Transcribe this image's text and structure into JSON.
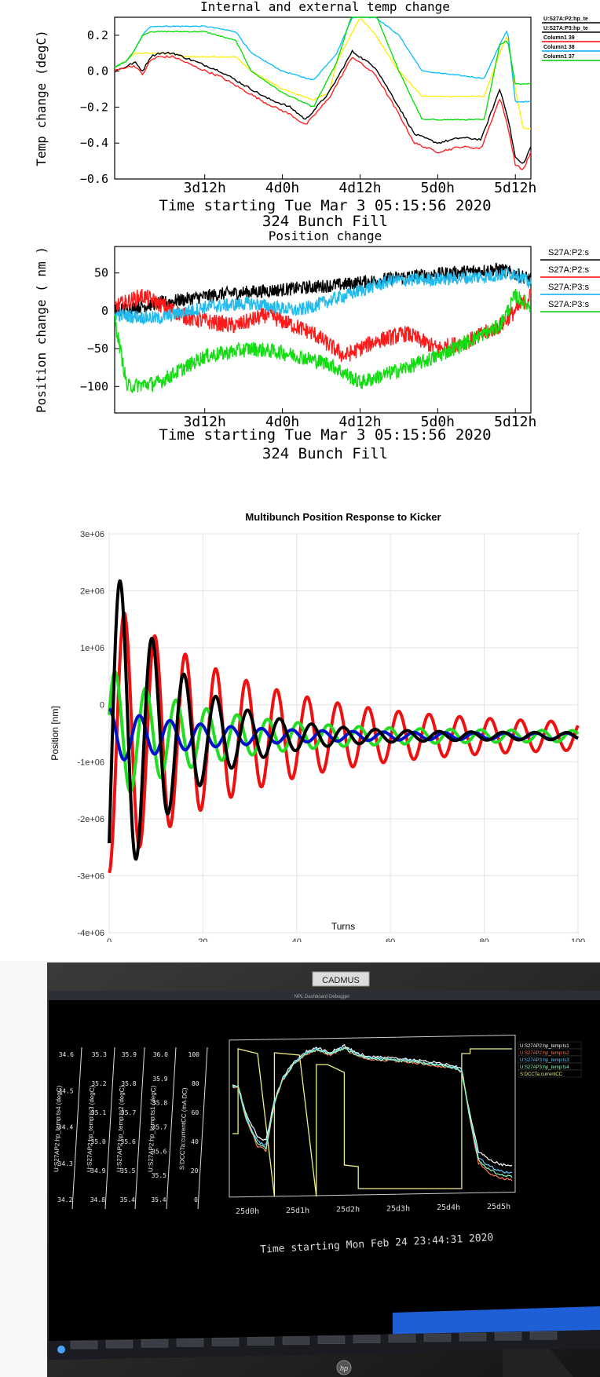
{
  "chart_data": [
    {
      "type": "line",
      "title": "Internal and external temp change",
      "ylabel": "Temp change (degC)",
      "xlabel": "Time starting Tue Mar  3 05:15:56  2020",
      "subtitle": "324 Bunch Fill",
      "x_ticks": [
        "3d12h",
        "4d0h",
        "4d12h",
        "5d0h",
        "5d12h"
      ],
      "y_ticks": [
        "0.2",
        "0.0",
        "−0.2",
        "−0.4",
        "−0.6"
      ],
      "ylim": [
        -0.6,
        0.3
      ],
      "xlim": [
        2.92,
        5.6
      ],
      "legend": [
        {
          "name": "U:S27A:P2:hp_te",
          "color": "#000000"
        },
        {
          "name": "U:S27A:P3:hp_te",
          "color": "#000000"
        },
        {
          "name": "Column1 39",
          "color": "#ff0000"
        },
        {
          "name": "Column1 38",
          "color": "#00aaff"
        },
        {
          "name": "Column1 37",
          "color": "#00cc00"
        }
      ],
      "series": [
        {
          "color": "#ffee00",
          "x": [
            2.92,
            3.0,
            3.05,
            3.1,
            3.3,
            3.35,
            3.7,
            3.8,
            4.0,
            4.2,
            4.3,
            4.35,
            4.5,
            4.6,
            4.75,
            4.9,
            5.0,
            5.3,
            5.4,
            5.45,
            5.5,
            5.55,
            5.6
          ],
          "y": [
            0.02,
            0.06,
            0.1,
            0.1,
            0.1,
            0.08,
            0.08,
            0.0,
            -0.1,
            -0.16,
            -0.12,
            0.05,
            0.3,
            0.2,
            0.0,
            -0.14,
            -0.14,
            -0.14,
            0.1,
            0.2,
            -0.1,
            -0.32,
            -0.32
          ]
        },
        {
          "color": "#00bbff",
          "x": [
            2.92,
            3.0,
            3.05,
            3.1,
            3.15,
            3.3,
            3.5,
            3.7,
            3.8,
            4.0,
            4.2,
            4.35,
            4.45,
            4.6,
            4.75,
            4.9,
            5.3,
            5.4,
            5.45,
            5.5,
            5.6
          ],
          "y": [
            0.02,
            0.06,
            0.12,
            0.2,
            0.25,
            0.25,
            0.25,
            0.22,
            0.1,
            0.0,
            -0.05,
            0.1,
            0.3,
            0.3,
            0.2,
            0.0,
            -0.04,
            0.15,
            0.23,
            -0.17,
            -0.17
          ]
        },
        {
          "color": "#00dd00",
          "x": [
            2.92,
            3.0,
            3.05,
            3.1,
            3.15,
            3.3,
            3.5,
            3.7,
            3.8,
            4.0,
            4.2,
            4.35,
            4.45,
            4.6,
            4.75,
            4.9,
            5.3,
            5.4,
            5.45,
            5.5,
            5.6
          ],
          "y": [
            0.02,
            0.06,
            0.12,
            0.2,
            0.22,
            0.22,
            0.22,
            0.17,
            0.0,
            -0.12,
            -0.2,
            0.05,
            0.32,
            0.32,
            0.0,
            -0.27,
            -0.27,
            0.15,
            0.17,
            -0.07,
            -0.07
          ]
        },
        {
          "color": "#000000",
          "x": [
            2.92,
            2.98,
            3.05,
            3.1,
            3.15,
            3.2,
            3.3,
            3.45,
            3.6,
            3.8,
            3.9,
            4.05,
            4.15,
            4.3,
            4.45,
            4.6,
            4.75,
            4.85,
            5.0,
            5.15,
            5.28,
            5.4,
            5.45,
            5.5,
            5.55,
            5.6
          ],
          "y": [
            0.0,
            0.02,
            0.05,
            0.0,
            0.08,
            0.1,
            0.1,
            0.05,
            0.0,
            -0.1,
            -0.15,
            -0.2,
            -0.27,
            -0.12,
            0.11,
            0.02,
            -0.2,
            -0.35,
            -0.4,
            -0.37,
            -0.38,
            -0.1,
            -0.25,
            -0.48,
            -0.52,
            -0.42
          ]
        },
        {
          "color": "#ff2222",
          "x": [
            2.92,
            2.98,
            3.05,
            3.1,
            3.15,
            3.2,
            3.3,
            3.45,
            3.6,
            3.8,
            3.9,
            4.05,
            4.15,
            4.3,
            4.45,
            4.6,
            4.75,
            4.85,
            5.0,
            5.15,
            5.28,
            5.4,
            5.45,
            5.5,
            5.55,
            5.6
          ],
          "y": [
            0.0,
            0.02,
            0.03,
            -0.02,
            0.06,
            0.08,
            0.08,
            0.02,
            -0.03,
            -0.13,
            -0.18,
            -0.24,
            -0.3,
            -0.15,
            0.08,
            -0.02,
            -0.24,
            -0.4,
            -0.45,
            -0.42,
            -0.43,
            -0.15,
            -0.3,
            -0.52,
            -0.55,
            -0.45
          ]
        }
      ]
    },
    {
      "type": "line",
      "title": "Position change",
      "ylabel": "Position change ( nm )",
      "xlabel": "Time starting Tue Mar  3 05:15:56  2020",
      "subtitle": "324 Bunch Fill",
      "x_ticks": [
        "3d12h",
        "4d0h",
        "4d12h",
        "5d0h",
        "5d12h"
      ],
      "y_ticks": [
        "50",
        "0",
        "−50",
        "−100"
      ],
      "ylim": [
        -135,
        85
      ],
      "xlim": [
        2.92,
        5.6
      ],
      "legend": [
        {
          "name": "S27A:P2:s",
          "color": "#000000"
        },
        {
          "name": "S27A:P2:s",
          "color": "#ff0000"
        },
        {
          "name": "S27A:P3:s",
          "color": "#00aaff"
        },
        {
          "name": "S27A:P3:s",
          "color": "#00cc00"
        }
      ],
      "series": [
        {
          "color": "#000000",
          "x": [
            2.92,
            3.2,
            3.6,
            4.0,
            4.4,
            4.8,
            5.2,
            5.4,
            5.6
          ],
          "y": [
            0,
            10,
            22,
            28,
            35,
            45,
            52,
            55,
            42
          ]
        },
        {
          "color": "#ff1a1a",
          "x": [
            2.92,
            3.1,
            3.4,
            3.7,
            3.9,
            4.2,
            4.4,
            4.6,
            4.8,
            5.0,
            5.2,
            5.4,
            5.6
          ],
          "y": [
            5,
            20,
            -10,
            -20,
            -5,
            -30,
            -60,
            -40,
            -30,
            -50,
            -40,
            -20,
            20
          ]
        },
        {
          "color": "#22bbee",
          "x": [
            2.92,
            3.2,
            3.5,
            3.8,
            4.1,
            4.4,
            4.7,
            5.0,
            5.3,
            5.5,
            5.6
          ],
          "y": [
            -5,
            -10,
            5,
            10,
            0,
            20,
            40,
            42,
            45,
            50,
            35
          ]
        },
        {
          "color": "#11dd11",
          "x": [
            2.92,
            3.0,
            3.2,
            3.5,
            3.8,
            4.0,
            4.3,
            4.5,
            4.8,
            5.0,
            5.2,
            5.4,
            5.5,
            5.6
          ],
          "y": [
            -10,
            -100,
            -95,
            -60,
            -50,
            -55,
            -70,
            -95,
            -75,
            -60,
            -40,
            -20,
            20,
            5
          ]
        }
      ]
    },
    {
      "type": "line",
      "title": "Multibunch Position Response to Kicker",
      "ylabel": "Position [nm]",
      "xlabel": "Turns",
      "x_ticks": [
        "0",
        "20",
        "40",
        "60",
        "80",
        "100"
      ],
      "y_ticks": [
        "3e+06",
        "2e+06",
        "1e+06",
        "0",
        "-1e+06",
        "-2e+06",
        "-3e+06",
        "-4e+06"
      ],
      "xlim": [
        0,
        100
      ],
      "ylim": [
        -4000000,
        3000000
      ],
      "grid": true,
      "series": [
        {
          "color": "#ee1111",
          "period": 6.5,
          "amp0": 2400000,
          "decay": 0.035,
          "ampfloor": 180000,
          "offset": -550000,
          "phase": 0.0
        },
        {
          "color": "#22dd22",
          "period": 6.5,
          "amp0": 1200000,
          "decay": 0.05,
          "ampfloor": 90000,
          "offset": -550000,
          "phase": 0.3
        },
        {
          "color": "#0011cc",
          "period": 6.5,
          "amp0": 480000,
          "decay": 0.05,
          "ampfloor": 50000,
          "offset": -550000,
          "phase": 0.5
        },
        {
          "color": "#000000",
          "period": 6.8,
          "amp0": 3200000,
          "decay": 0.07,
          "ampfloor": 60000,
          "offset": -550000,
          "phase": 0.15
        }
      ]
    }
  ],
  "monitor": {
    "label": "CADMUS",
    "window_title": "NPL Dashboard Debugger",
    "brand": "hp",
    "legend": [
      {
        "name": "U:S27AP2:hp_temp:ts1",
        "color": "#ffffff"
      },
      {
        "name": "U:S27AP2:hp_temp:ts2",
        "color": "#ff7755"
      },
      {
        "name": "U:S27AP3:hp_temp:ts3",
        "color": "#66ccff"
      },
      {
        "name": "U:S27AP3:hp_temp:ts4",
        "color": "#88ffbb"
      },
      {
        "name": "S:DCCTa:currentCC",
        "color": "#eeee88"
      }
    ],
    "axes": [
      {
        "label": "U:S27AP2:hp_temp:ts4 (degC)",
        "ticks": [
          "34.6",
          "34.5",
          "34.4",
          "34.3",
          "34.2"
        ]
      },
      {
        "label": "U:S27AP2:hp_temp:ts3 (degC)",
        "ticks": [
          "35.3",
          "35.2",
          "35.1",
          "35.0",
          "34.9",
          "34.8"
        ]
      },
      {
        "label": "U:S27AP2:hp_temp:ts2 (degC)",
        "ticks": [
          "35.9",
          "35.8",
          "35.7",
          "35.6",
          "35.5",
          "35.4"
        ]
      },
      {
        "label": "U:S27AP2:hp_temp:ts1 (degC)",
        "ticks": [
          "36.0",
          "35.9",
          "35.8",
          "35.7",
          "35.6",
          "35.5",
          "35.4"
        ]
      },
      {
        "label": "S:DCCTa:currentCC (mA DC)",
        "ticks": [
          "100",
          "80",
          "60",
          "40",
          "20",
          "0"
        ]
      }
    ],
    "x_ticks": [
      "25d0h",
      "25d1h",
      "25d2h",
      "25d3h",
      "25d4h",
      "25d5h"
    ],
    "xlabel": "Time starting Mon Feb 24 23:44:31  2020"
  }
}
